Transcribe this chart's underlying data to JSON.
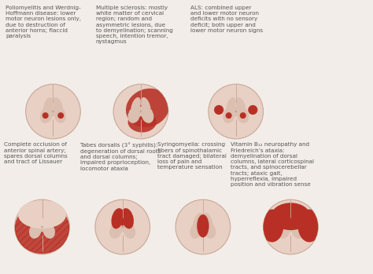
{
  "background_color": "#f2ede8",
  "labels": [
    "Poliomyelitis and Werdnig-\nHoffmann disease: lower\nmotor neuron lesions only,\ndue to destruction of\nanterior horns; flaccid\nparalysis",
    "Multiple sclerosis: mostly\nwhite matter of cervical\nregion; random and\nasymmetric lesions, due\nto demyelination; scanning\nspeech, intention tremor,\nnystagmus",
    "ALS: combined upper\nand lower motor neuron\ndeficits with no sensory\ndeficit; both upper and\nlower motor neuron signs",
    "Complete occlusion of\nanterior spinal artery;\nspares dorsal columns\nand tract of Lissauer",
    "Tabes dorsalis (3° syphilis):\ndegeneration of dorsal roots\nand dorsal columns;\nimpaired proprioception,\nlocomotor ataxia",
    "Syringomyelia: crossing\nfibers of spinothalamic\ntract damaged; bilateral\nloss of pain and\ntemperature sensation",
    "Vitamin B₁₂ neuropathy and\nFriedreich’s ataxia:\ndemyelination of dorsal\ncolumns, lateral corticospinal\ntracts, and spinocerebellar\ntracts; ataxic gait,\nhyperreflexia, impaired\nposition and vibration sense"
  ],
  "cord_color": "#e8d0c4",
  "cord_outline": "#c8a898",
  "gm_color": "#dbbfb0",
  "lesion_color": "#b83025",
  "lesion_light": "#d04535",
  "text_color": "#555555",
  "font_size": 5.2,
  "cord_r": 0.075
}
